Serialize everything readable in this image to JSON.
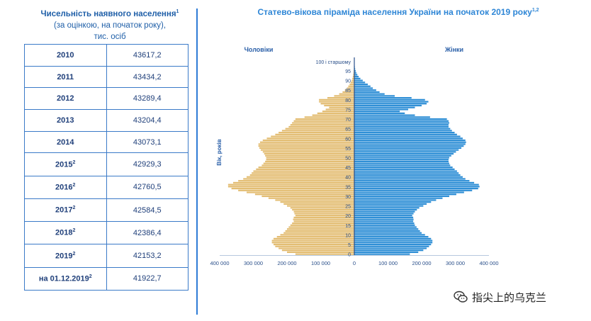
{
  "left_panel": {
    "title": "Чисельність наявного населення",
    "title_sup": "1",
    "subtitle": "(за оцінкою, на початок року),",
    "units": "тис. осіб",
    "rows": [
      {
        "year": "2010",
        "sup": "",
        "value": "43617,2"
      },
      {
        "year": "2011",
        "sup": "",
        "value": "43434,2"
      },
      {
        "year": "2012",
        "sup": "",
        "value": "43289,4"
      },
      {
        "year": "2013",
        "sup": "",
        "value": "43204,4"
      },
      {
        "year": "2014",
        "sup": "",
        "value": "43073,1"
      },
      {
        "year": "2015",
        "sup": "2",
        "value": "42929,3"
      },
      {
        "year": "2016",
        "sup": "2",
        "value": "42760,5"
      },
      {
        "year": "2017",
        "sup": "2",
        "value": "42584,5"
      },
      {
        "year": "2018",
        "sup": "2",
        "value": "42386,4"
      },
      {
        "year": "2019",
        "sup": "2",
        "value": "42153,2"
      },
      {
        "year": "на 01.12.2019",
        "sup": "2",
        "value": "41922,7"
      }
    ]
  },
  "chart_data": {
    "type": "bar",
    "orientation": "population-pyramid",
    "title": "Статево-вікова піраміда населення України на початок 2019 року",
    "title_sup": "1,2",
    "ylabel": "Вік, років",
    "top_label": "100 і старшому",
    "x_ticks": [
      "400 000",
      "300 000",
      "200 000",
      "100 000",
      "0",
      "100 000",
      "200 000",
      "300 000",
      "400 000"
    ],
    "xlim": [
      -400000,
      400000
    ],
    "y_ticks": [
      0,
      5,
      10,
      15,
      20,
      25,
      30,
      35,
      40,
      45,
      50,
      55,
      60,
      65,
      70,
      75,
      80,
      85,
      90,
      95
    ],
    "series": [
      {
        "name": "Чоловіки",
        "color": "#e3bd73",
        "values": [
          175000,
          200000,
          215000,
          225000,
          235000,
          240000,
          245000,
          245000,
          240000,
          230000,
          220000,
          210000,
          205000,
          200000,
          195000,
          190000,
          185000,
          180000,
          182000,
          180000,
          175000,
          178000,
          180000,
          185000,
          190000,
          200000,
          210000,
          220000,
          235000,
          255000,
          275000,
          295000,
          320000,
          345000,
          365000,
          375000,
          375000,
          360000,
          345000,
          330000,
          320000,
          310000,
          305000,
          300000,
          292000,
          285000,
          275000,
          270000,
          265000,
          262000,
          262000,
          265000,
          268000,
          272000,
          278000,
          282000,
          285000,
          285000,
          280000,
          272000,
          260000,
          248000,
          235000,
          225000,
          215000,
          205000,
          195000,
          190000,
          185000,
          180000,
          175000,
          148000,
          125000,
          110000,
          95000,
          85000,
          75000,
          90000,
          100000,
          105000,
          105000,
          80000,
          60000,
          45000,
          35000,
          28000,
          22000,
          18000,
          14000,
          11000,
          8000,
          6000,
          4500,
          3500,
          2500,
          1800,
          1200,
          800,
          500,
          300,
          200
        ]
      },
      {
        "name": "Жінки",
        "color": "#2f8fd6",
        "values": [
          165000,
          190000,
          205000,
          215000,
          222000,
          228000,
          232000,
          232000,
          228000,
          220000,
          210000,
          200000,
          195000,
          190000,
          185000,
          180000,
          178000,
          175000,
          176000,
          175000,
          172000,
          176000,
          180000,
          186000,
          193000,
          205000,
          215000,
          228000,
          243000,
          262000,
          282000,
          303000,
          326000,
          350000,
          368000,
          372000,
          370000,
          356000,
          342000,
          330000,
          322000,
          315000,
          310000,
          305000,
          298000,
          292000,
          285000,
          282000,
          280000,
          280000,
          282000,
          288000,
          295000,
          302000,
          310000,
          318000,
          325000,
          330000,
          332000,
          330000,
          322000,
          315000,
          305000,
          298000,
          290000,
          285000,
          280000,
          280000,
          282000,
          280000,
          275000,
          225000,
          180000,
          150000,
          135000,
          160000,
          180000,
          200000,
          215000,
          220000,
          210000,
          170000,
          120000,
          90000,
          75000,
          65000,
          55000,
          48000,
          40000,
          32000,
          25000,
          18000,
          13000,
          9000,
          6000,
          4000,
          2500,
          1500,
          900,
          500,
          300
        ]
      }
    ]
  },
  "watermark": {
    "text": "指尖上的乌克兰",
    "icon": "wechat-icon"
  }
}
